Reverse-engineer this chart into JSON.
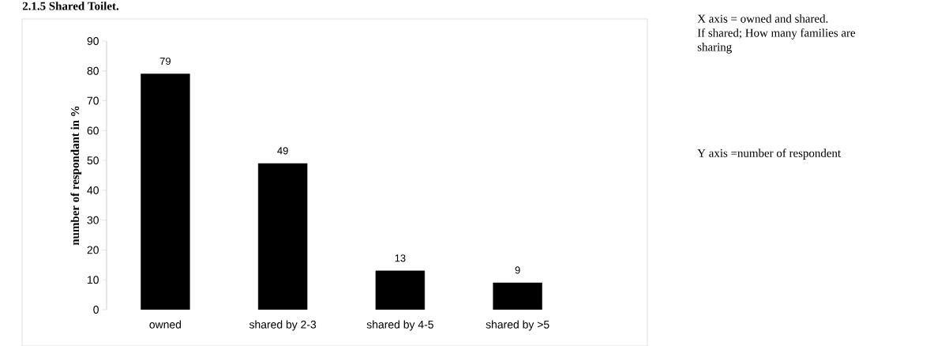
{
  "chart_data": {
    "type": "bar",
    "title": "2.1.5 Shared Toilet.",
    "ylabel": "number of respondant in %",
    "categories": [
      "owned",
      "shared by 2-3",
      "shared by 4-5",
      "shared by >5"
    ],
    "values": [
      79,
      49,
      13,
      9
    ],
    "color": "#000000",
    "data_labels": true,
    "ylim": [
      0,
      90
    ],
    "yticks": [
      0,
      10,
      20,
      30,
      40,
      50,
      60,
      70,
      80,
      90
    ],
    "grid": false,
    "annotations": [
      "X axis = owned and shared.\nIf shared; How many families are sharing",
      "Y axis =number of respondent"
    ]
  }
}
